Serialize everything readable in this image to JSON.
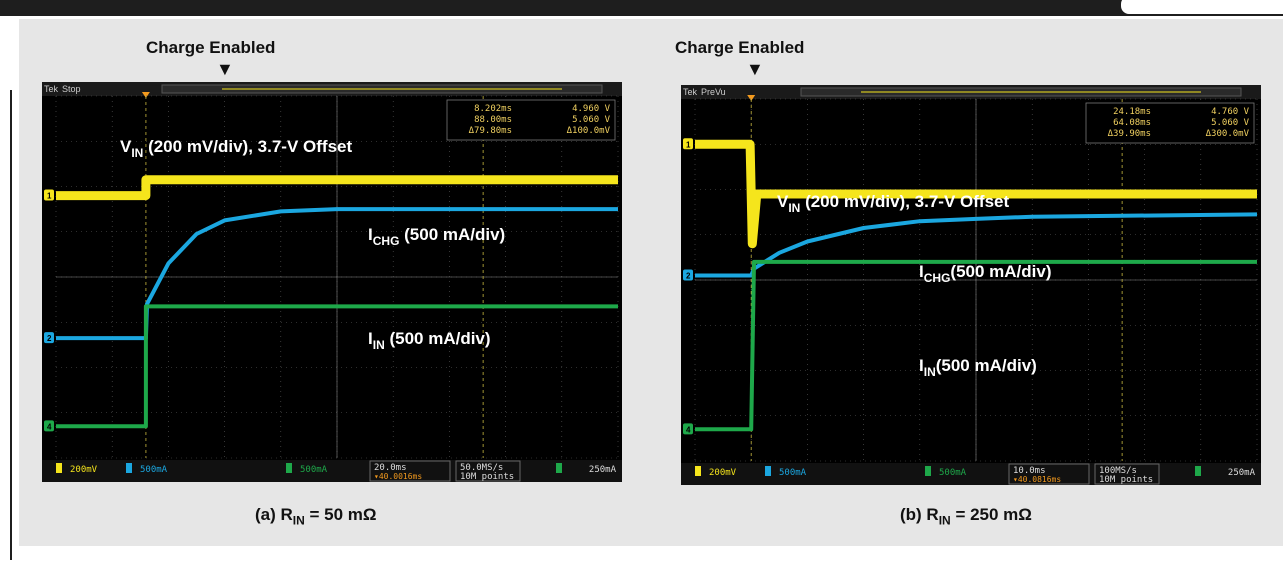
{
  "colors": {
    "ch1": "#f5e51c",
    "ch2": "#1ba7e0",
    "ch4": "#1ea84a",
    "bg": "#000000",
    "grid": "#5a5a5a",
    "math": "#e36a1f"
  },
  "panels": [
    {
      "header": "Charge Enabled",
      "caption_prefix": "(a) R",
      "caption_sub": "IN",
      "caption_suffix": " = 50 mΩ",
      "topbar": {
        "brand": "Tek",
        "state": "Stop"
      },
      "meas": {
        "r1": "8.202ms",
        "r1b": "4.960 V",
        "r2": "88.00ms",
        "r2b": "5.060 V",
        "r3": "Δ79.80ms",
        "r3b": "Δ100.0mV"
      },
      "labels": {
        "vin_main": "V",
        "vin_sub": "IN",
        "vin_rest": " (200 mV/div), 3.7-V Offset",
        "ichg_main": "I",
        "ichg_sub": "CHG",
        "ichg_rest": " (500 mA/div)",
        "iin_main": "I",
        "iin_sub": "IN",
        "iin_rest": " (500 mA/div)"
      },
      "status": {
        "ch1": "200mV",
        "ch2": "500mA",
        "ch4": "500mA",
        "time": "20.0ms",
        "trig_pos": "▾40.0016ms",
        "rate": "50.0MS/s",
        "points": "10M points",
        "trig": "250mA"
      }
    },
    {
      "header": "Charge Enabled",
      "caption_prefix": "(b) R",
      "caption_sub": "IN",
      "caption_suffix": " = 250 mΩ",
      "topbar": {
        "brand": "Tek",
        "state": "PreVu"
      },
      "meas": {
        "r1": "24.18ms",
        "r1b": "4.760 V",
        "r2": "64.08ms",
        "r2b": "5.060 V",
        "r3": "Δ39.90ms",
        "r3b": "Δ300.0mV"
      },
      "labels": {
        "vin_main": "V",
        "vin_sub": "IN",
        "vin_rest": " (200 mV/div), 3.7-V Offset",
        "ichg_main": "I",
        "ichg_sub": "CHG",
        "ichg_rest": "(500 mA/div)",
        "iin_main": "I",
        "iin_sub": "IN",
        "iin_rest": "(500 mA/div)"
      },
      "status": {
        "ch1": "200mV",
        "ch2": "500mA",
        "ch4": "500mA",
        "time": "10.0ms",
        "trig_pos": "▾40.0816ms",
        "rate": "100MS/s",
        "points": "10M points",
        "trig": "250mA"
      }
    }
  ],
  "chart_data": [
    {
      "type": "line",
      "xlabel": "",
      "ylabel": "",
      "x_divisions": 10,
      "y_divisions": 8,
      "grid": true,
      "trigger_time_div": 1.6,
      "series": [
        {
          "name": "VIN (200 mV/div), 3.7-V Offset",
          "channel": 1,
          "x": [
            0,
            1.6,
            1.6,
            10
          ],
          "y": [
            2.2,
            2.2,
            1.85,
            1.85
          ]
        },
        {
          "name": "ICHG (500 mA/div)",
          "channel": 2,
          "x": [
            0,
            1.6,
            1.62,
            2.0,
            2.5,
            3.0,
            4.0,
            5.0,
            10
          ],
          "y": [
            5.35,
            5.35,
            4.6,
            3.7,
            3.05,
            2.75,
            2.55,
            2.5,
            2.5
          ]
        },
        {
          "name": "IN (500 mA/div)",
          "channel": 4,
          "x": [
            0,
            1.6,
            1.6,
            10
          ],
          "y": [
            7.3,
            7.3,
            4.65,
            4.65
          ]
        }
      ]
    },
    {
      "type": "line",
      "xlabel": "",
      "ylabel": "",
      "x_divisions": 10,
      "y_divisions": 8,
      "grid": true,
      "trigger_time_div": 1.0,
      "series": [
        {
          "name": "VIN (200 mV/div), 3.7-V Offset",
          "channel": 1,
          "x": [
            0,
            0.98,
            1.02,
            1.1,
            10
          ],
          "y": [
            1.0,
            1.0,
            3.2,
            2.1,
            2.1
          ]
        },
        {
          "name": "ICHG (500 mA/div)",
          "channel": 2,
          "x": [
            0,
            1.0,
            1.05,
            1.5,
            2.0,
            3.0,
            4.0,
            5.0,
            6.0,
            10
          ],
          "y": [
            3.9,
            3.9,
            3.75,
            3.4,
            3.15,
            2.85,
            2.7,
            2.65,
            2.6,
            2.55
          ]
        },
        {
          "name": "IN (500 mA/div)",
          "channel": 4,
          "x": [
            0,
            1.0,
            1.05,
            10
          ],
          "y": [
            7.3,
            7.3,
            3.6,
            3.6
          ]
        }
      ]
    }
  ]
}
